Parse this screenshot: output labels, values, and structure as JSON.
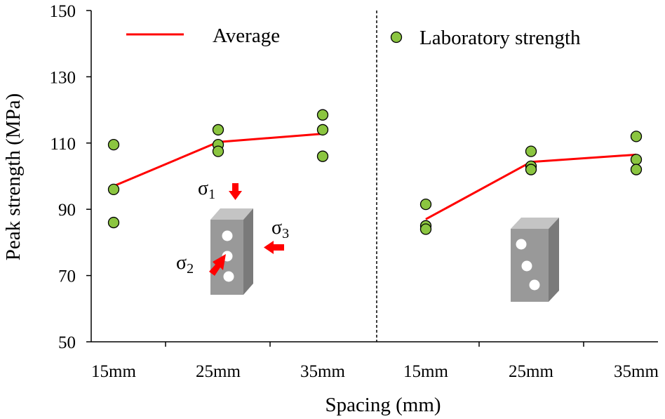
{
  "chart_data": {
    "type": "scatter",
    "xlabel": "Spacing (mm)",
    "ylabel": "Peak strength (MPa)",
    "ylim": [
      50,
      150
    ],
    "yticks": [
      50,
      70,
      90,
      110,
      130,
      150
    ],
    "categories": [
      "15mm",
      "25mm",
      "35mm",
      "15mm",
      "25mm",
      "35mm"
    ],
    "panels": [
      {
        "categories": [
          "15mm",
          "25mm",
          "35mm"
        ],
        "laboratory": [
          [
            109.5,
            96,
            86
          ],
          [
            114,
            109.5,
            107.5
          ],
          [
            118.5,
            114,
            106
          ]
        ],
        "average": [
          97,
          110.3,
          112.8
        ],
        "sigma_labels": {
          "s1": "σ",
          "s1_sub": "1",
          "s2": "σ",
          "s2_sub": "2",
          "s3": "σ",
          "s3_sub": "3"
        }
      },
      {
        "categories": [
          "15mm",
          "25mm",
          "35mm"
        ],
        "laboratory": [
          [
            91.5,
            85,
            84
          ],
          [
            107.5,
            103,
            102
          ],
          [
            112,
            105,
            102
          ]
        ],
        "average": [
          87,
          104.3,
          106.5
        ]
      }
    ],
    "legend": [
      {
        "label": "Average",
        "marker": "line",
        "color": "#ff0000"
      },
      {
        "label": "Laboratory strength",
        "marker": "circle",
        "color": "#8bc540"
      }
    ],
    "colors": {
      "average_line": "#ff0000",
      "point_fill": "#8bc540",
      "point_stroke": "#000000",
      "arrow": "#ff0000",
      "block_front": "#999999",
      "block_top": "#c4c4c4",
      "block_side": "#7a7a7a"
    },
    "divider": "dashed",
    "grid": false
  }
}
